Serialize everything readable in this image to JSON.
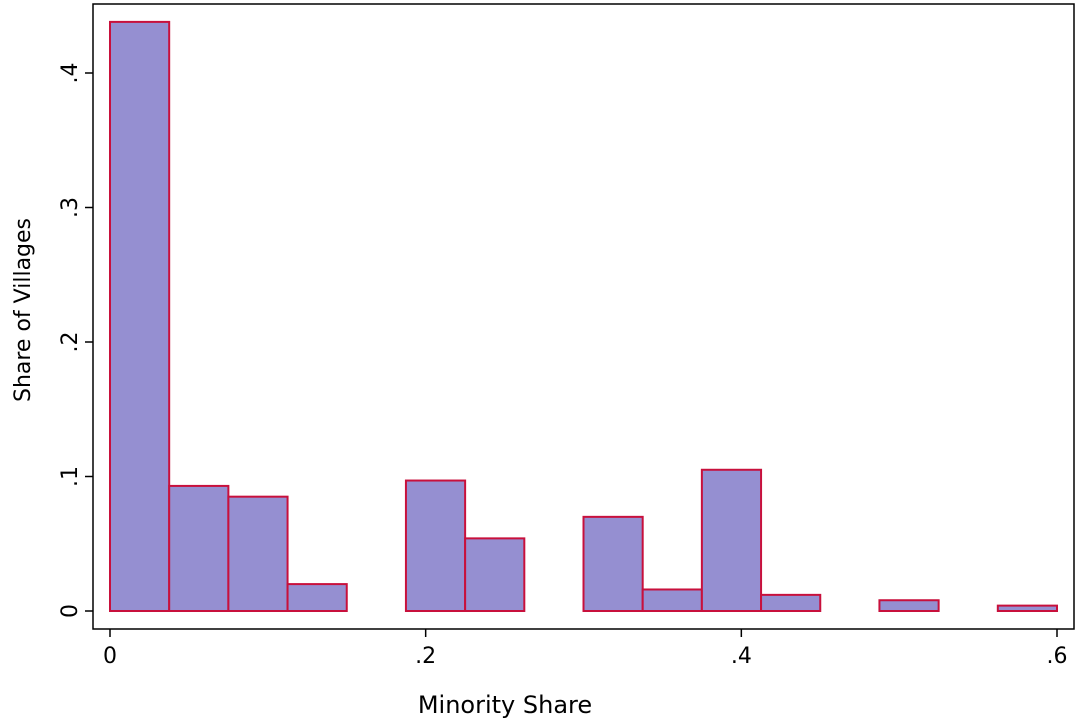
{
  "chart_data": {
    "type": "bar",
    "subtype": "histogram",
    "xlabel": "Minority Share",
    "ylabel": "Share of Villages",
    "xlim": [
      -0.002,
      0.6
    ],
    "ylim": [
      -0.014,
      0.44
    ],
    "x_ticks": [
      0,
      0.2,
      0.4,
      0.6
    ],
    "x_tick_labels": [
      "0",
      ".2",
      ".4",
      ".6"
    ],
    "y_ticks": [
      0,
      0.1,
      0.2,
      0.3,
      0.4
    ],
    "y_tick_labels": [
      "0",
      ".1",
      ".2",
      ".3",
      ".4"
    ],
    "grid": false,
    "legend": "none",
    "bin_width": 0.0375,
    "bins": [
      {
        "x_start": 0.0,
        "x_end": 0.0375,
        "value": 0.438
      },
      {
        "x_start": 0.0375,
        "x_end": 0.075,
        "value": 0.093
      },
      {
        "x_start": 0.075,
        "x_end": 0.1125,
        "value": 0.085
      },
      {
        "x_start": 0.1125,
        "x_end": 0.15,
        "value": 0.02
      },
      {
        "x_start": 0.1875,
        "x_end": 0.225,
        "value": 0.097
      },
      {
        "x_start": 0.225,
        "x_end": 0.2625,
        "value": 0.054
      },
      {
        "x_start": 0.3,
        "x_end": 0.3375,
        "value": 0.07
      },
      {
        "x_start": 0.3375,
        "x_end": 0.375,
        "value": 0.016
      },
      {
        "x_start": 0.375,
        "x_end": 0.4125,
        "value": 0.105
      },
      {
        "x_start": 0.4125,
        "x_end": 0.45,
        "value": 0.012
      },
      {
        "x_start": 0.4875,
        "x_end": 0.525,
        "value": 0.008
      },
      {
        "x_start": 0.5625,
        "x_end": 0.6,
        "value": 0.004
      }
    ],
    "colors": {
      "bar_fill": "#958fd1",
      "bar_outline": "#c8103c",
      "axis": "#000000",
      "background": "#ffffff"
    }
  }
}
